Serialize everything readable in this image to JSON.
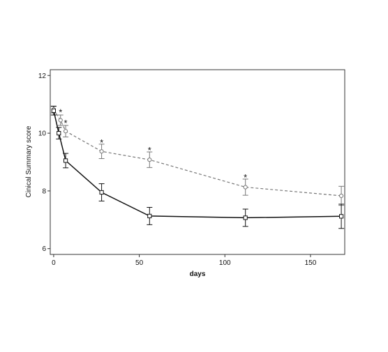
{
  "chart_data": {
    "type": "line",
    "title": "",
    "xlabel": "days",
    "ylabel": "Cinical Summary score",
    "xlim": [
      -2,
      170
    ],
    "ylim": [
      5.8,
      12.2
    ],
    "xticks": [
      0,
      50,
      100,
      150
    ],
    "yticks": [
      6,
      8,
      10,
      12
    ],
    "grid": false,
    "legend": "none",
    "series": [
      {
        "style": "dashed",
        "marker": "circle",
        "color": "#777777",
        "x": [
          0,
          4,
          7,
          28,
          56,
          112,
          168
        ],
        "y": [
          10.82,
          10.45,
          10.07,
          9.37,
          9.08,
          8.13,
          7.83
        ],
        "err": [
          0.12,
          0.18,
          0.2,
          0.25,
          0.27,
          0.28,
          0.33
        ]
      },
      {
        "style": "solid",
        "marker": "square",
        "color": "#111111",
        "x": [
          0,
          3,
          7,
          28,
          56,
          112,
          168
        ],
        "y": [
          10.78,
          10.0,
          9.05,
          7.95,
          7.13,
          7.07,
          7.12
        ],
        "err": [
          0.15,
          0.2,
          0.25,
          0.3,
          0.3,
          0.3,
          0.42
        ]
      }
    ],
    "annotations": [
      {
        "text": "*",
        "x": 4,
        "y": 10.72
      },
      {
        "text": "*",
        "x": 7,
        "y": 10.34
      },
      {
        "text": "*",
        "x": 28,
        "y": 9.67
      },
      {
        "text": "*",
        "x": 56,
        "y": 9.4
      },
      {
        "text": "*",
        "x": 112,
        "y": 8.46
      }
    ]
  }
}
